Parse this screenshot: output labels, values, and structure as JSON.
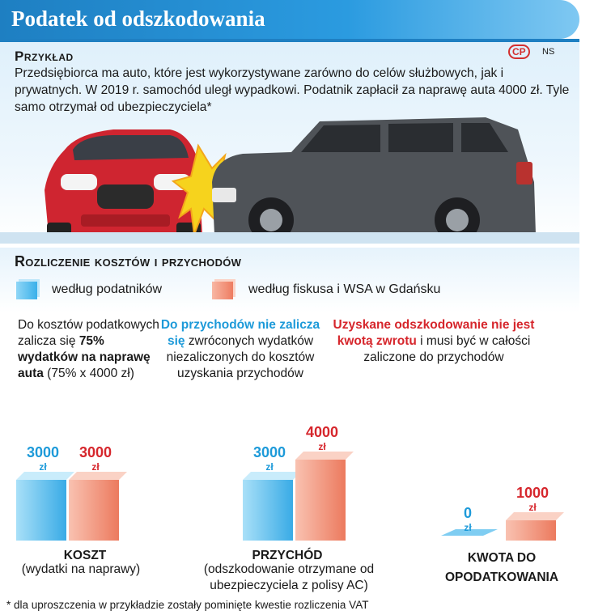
{
  "header": {
    "title": "Podatek od odszkodowania",
    "logo_text": "CP",
    "author": "NS"
  },
  "example": {
    "heading": "Przykład",
    "text": "Przedsiębiorca ma auto, które jest wykorzystywane zarówno do celów służbowych, jak i prywatnych. W 2019 r. samochód uległ wypadkowi. Podatnik zapłacił za naprawę auta 4000 zł. Tyle samo otrzymał od ubezpieczyciela*"
  },
  "section": {
    "heading": "Rozliczenie kosztów i przychodów"
  },
  "legend": {
    "blue_label": "według podatników",
    "red_label": "według fiskusa i WSA w Gdańsku"
  },
  "notes": {
    "note1": {
      "pre": "Do kosztów podatkowych zalicza się ",
      "bold": "75% wydatków na naprawę auta",
      "post": " (75% x 4000 zł)"
    },
    "note2": {
      "highlight": "Do przychodów nie zalicza się",
      "post": " zwróconych wydatków niezaliczonych do kosztów uzyskania przychodów"
    },
    "note3": {
      "highlight": "Uzyskane odszkodowanie nie jest kwotą zwrotu",
      "post": " i musi być w całości zaliczone do przychodów"
    }
  },
  "categories": {
    "koszt": {
      "title": "KOSZT",
      "subtitle": "(wydatki na naprawy)"
    },
    "przychod": {
      "title": "PRZYCHÓD",
      "subtitle": "(odszkodowanie otrzymane od ubezpieczyciela z polisy AC)"
    },
    "kwota": {
      "title": "KWOTA DO OPODATKOWANIA"
    }
  },
  "footnote": "* dla uproszczenia w przykładzie zostały pominięte kwestie rozliczenia VAT",
  "colors": {
    "blue": "#1d9ad9",
    "red": "#d6262c",
    "accent": "#1e7fc2"
  },
  "chart_data": {
    "type": "bar",
    "categories": [
      "KOSZT",
      "PRZYCHÓD",
      "KWOTA DO OPODATKOWANIA"
    ],
    "unit": "zł",
    "series": [
      {
        "name": "według podatników",
        "values": [
          3000,
          3000,
          0
        ]
      },
      {
        "name": "według fiskusa i WSA w Gdańsku",
        "values": [
          3000,
          4000,
          1000
        ]
      }
    ]
  }
}
